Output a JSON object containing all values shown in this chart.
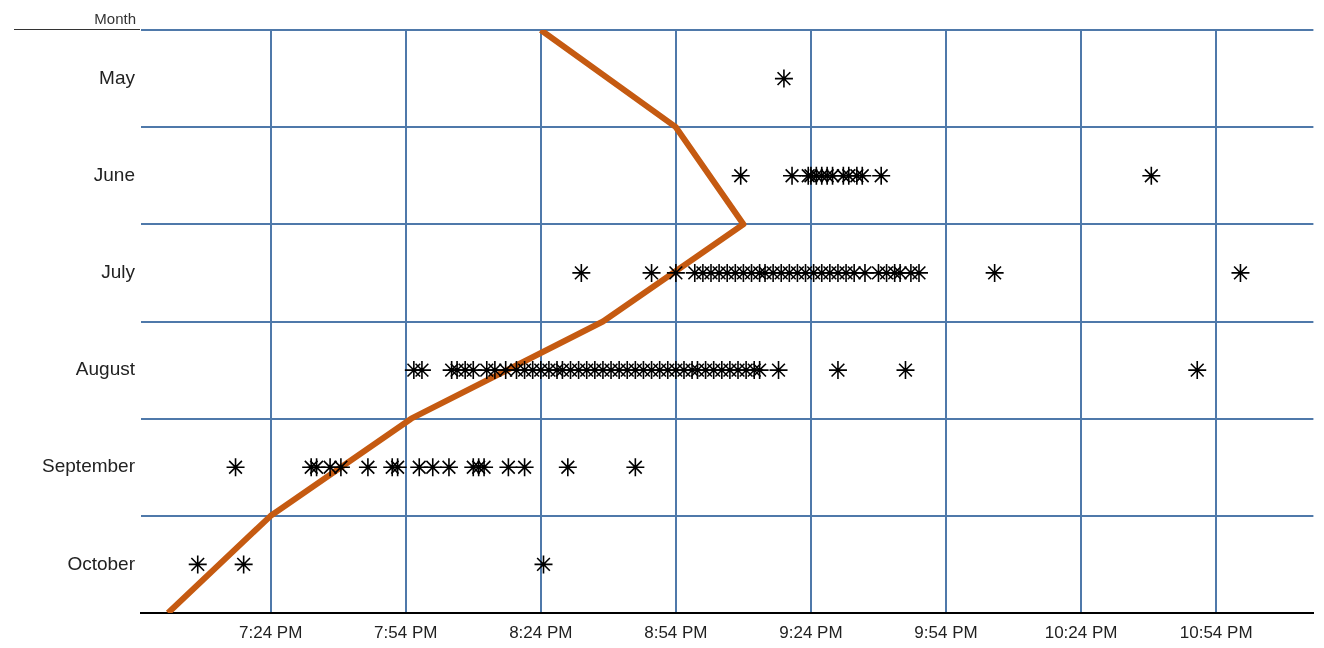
{
  "chart_data": {
    "type": "scatter",
    "orientation": "horizontal",
    "ylabel": "Month",
    "categories": [
      null,
      "May",
      null,
      "June",
      null,
      "July",
      null,
      "August",
      null,
      "September",
      null,
      "October",
      null
    ],
    "xlim": [
      18.92,
      23.26
    ],
    "xticks": [
      {
        "value": 19.4,
        "label": "7:24 PM"
      },
      {
        "value": 19.9,
        "label": "7:54 PM"
      },
      {
        "value": 20.4,
        "label": "8:24 PM"
      },
      {
        "value": 20.9,
        "label": "8:54 PM"
      },
      {
        "value": 21.4,
        "label": "9:24 PM"
      },
      {
        "value": 21.9,
        "label": "9:54 PM"
      },
      {
        "value": 22.4,
        "label": "10:24 PM"
      },
      {
        "value": 22.9,
        "label": "10:54 PM"
      }
    ],
    "grid": true,
    "legend": false,
    "series": [
      {
        "color": "#000000",
        "marker": "cross",
        "x": [
          "May",
          "June",
          "June",
          "June",
          "June",
          "June",
          "June",
          "June",
          "June",
          "June",
          "June",
          "June",
          "June",
          "June",
          "June",
          "July",
          "July",
          "July",
          "July",
          "July",
          "July",
          "July",
          "July",
          "July",
          "July",
          "July",
          "July",
          "July",
          "July",
          "July",
          "July",
          "July",
          "July",
          "July",
          "July",
          "July",
          "July",
          "July",
          "July",
          "July",
          "July",
          "July",
          "July",
          "July",
          "July",
          "July",
          "July",
          "July",
          "August",
          "August",
          "August",
          "August",
          "August",
          "August",
          "August",
          "August",
          "August",
          "August",
          "August",
          "August",
          "August",
          "August",
          "August",
          "August",
          "August",
          "August",
          "August",
          "August",
          "August",
          "August",
          "August",
          "August",
          "August",
          "August",
          "August",
          "August",
          "August",
          "August",
          "August",
          "August",
          "August",
          "August",
          "August",
          "August",
          "August",
          "August",
          "August",
          "August",
          "August",
          "August",
          "August",
          "August",
          "August",
          "September",
          "September",
          "September",
          "September",
          "September",
          "September",
          "September",
          "September",
          "September",
          "September",
          "September",
          "September",
          "September",
          "September",
          "September",
          "September",
          "September",
          "September",
          "October",
          "October",
          "October"
        ],
        "values": [
          21.3,
          21.14,
          21.33,
          21.39,
          21.4,
          21.42,
          21.44,
          21.46,
          21.48,
          21.52,
          21.54,
          21.57,
          21.59,
          21.66,
          22.66,
          20.55,
          20.81,
          20.9,
          20.97,
          21.0,
          21.03,
          21.06,
          21.09,
          21.12,
          21.15,
          21.18,
          21.21,
          21.23,
          21.26,
          21.29,
          21.32,
          21.35,
          21.38,
          21.41,
          21.44,
          21.47,
          21.5,
          21.53,
          21.56,
          21.6,
          21.65,
          21.68,
          21.71,
          21.73,
          21.77,
          21.8,
          22.08,
          22.99,
          19.93,
          19.96,
          20.07,
          20.09,
          20.12,
          20.15,
          20.2,
          20.23,
          20.27,
          20.31,
          20.34,
          20.37,
          20.4,
          20.43,
          20.46,
          20.48,
          20.51,
          20.54,
          20.57,
          20.6,
          20.63,
          20.66,
          20.69,
          20.72,
          20.75,
          20.78,
          20.81,
          20.84,
          20.87,
          20.9,
          20.93,
          20.96,
          20.98,
          21.01,
          21.04,
          21.07,
          21.1,
          21.13,
          21.16,
          21.19,
          21.21,
          21.28,
          21.5,
          21.75,
          22.83,
          19.27,
          19.55,
          19.57,
          19.62,
          19.66,
          19.76,
          19.85,
          19.87,
          19.95,
          20.0,
          20.06,
          20.15,
          20.17,
          20.19,
          20.28,
          20.34,
          20.5,
          20.75,
          19.13,
          19.3,
          20.41
        ]
      },
      {
        "type": "line",
        "color": "#c55a11",
        "marker": "none",
        "line_style": "solid",
        "values": [
          20.4,
          null,
          20.9,
          null,
          21.15,
          null,
          20.63,
          null,
          19.92,
          null,
          19.4,
          null,
          19.02
        ]
      }
    ]
  }
}
